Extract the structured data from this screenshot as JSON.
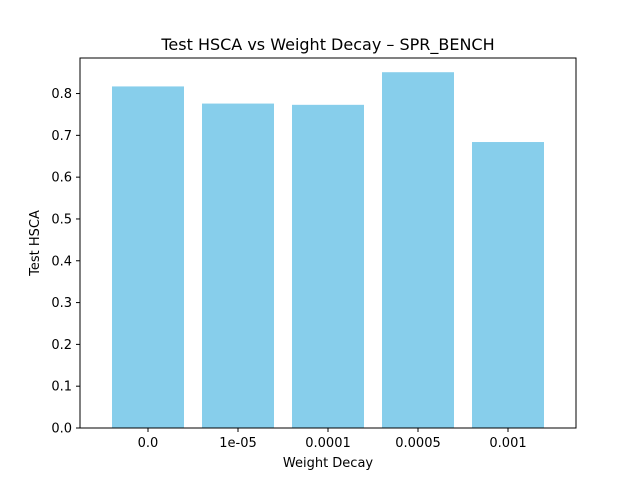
{
  "chart_data": {
    "type": "bar",
    "title": "Test HSCA vs Weight Decay – SPR_BENCH",
    "xlabel": "Weight Decay",
    "ylabel": "Test HSCA",
    "categories": [
      "0.0",
      "1e-05",
      "0.0001",
      "0.0005",
      "0.001"
    ],
    "values": [
      0.817,
      0.776,
      0.773,
      0.851,
      0.684
    ],
    "ylim": [
      0,
      0.885
    ],
    "yticks": [
      0.0,
      0.1,
      0.2,
      0.3,
      0.4,
      0.5,
      0.6,
      0.7,
      0.8
    ],
    "ytick_labels": [
      "0.0",
      "0.1",
      "0.2",
      "0.3",
      "0.4",
      "0.5",
      "0.6",
      "0.7",
      "0.8"
    ],
    "bar_color": "#87ceeb",
    "grid": false,
    "legend": "none"
  }
}
